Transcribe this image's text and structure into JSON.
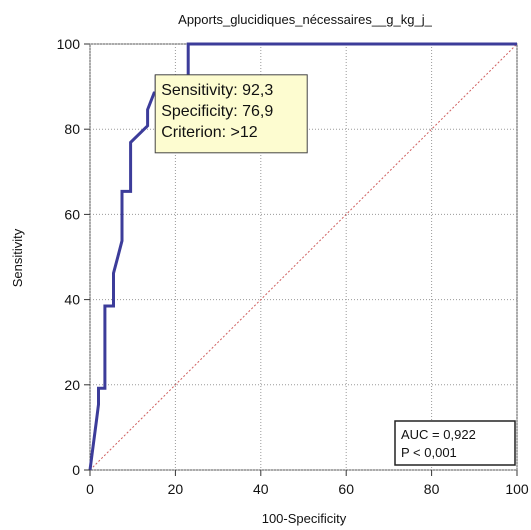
{
  "chart_data": {
    "type": "line",
    "title": "Apports_glucidiques_nécessaires__g_kg_j_",
    "xlabel": "100-Specificity",
    "ylabel": "Sensitivity",
    "xlim": [
      0,
      100
    ],
    "ylim": [
      0,
      100
    ],
    "xticks": [
      0,
      20,
      40,
      60,
      80,
      100
    ],
    "yticks": [
      0,
      20,
      40,
      60,
      80,
      100
    ],
    "grid": true,
    "series": [
      {
        "color": "#3c3c9a",
        "x": [
          0,
          0.5,
          1.5,
          2,
          2,
          3.5,
          3.5,
          5.5,
          5.5,
          6.5,
          7.5,
          7.5,
          9.5,
          9.5,
          13.5,
          13.5,
          15,
          15.5,
          15.5,
          23,
          23,
          100
        ],
        "y": [
          0,
          3.8,
          11.5,
          15.4,
          19.2,
          19.2,
          38.5,
          38.5,
          46.2,
          50,
          53.8,
          65.4,
          65.4,
          76.9,
          80.8,
          84.6,
          88.5,
          88.5,
          92.3,
          92.3,
          100,
          100
        ]
      },
      {
        "color": "#d06060",
        "dashed": true,
        "x": [
          0,
          100
        ],
        "y": [
          0,
          100
        ]
      }
    ],
    "annotation": {
      "point": [
        23,
        92.3
      ],
      "lines": [
        "Sensitivity: 92,3",
        "Specificity: 76,9",
        "Criterion: >12"
      ]
    },
    "stats_box": {
      "lines": [
        "AUC = 0,922",
        "P < 0,001"
      ],
      "placement": "bottom-right"
    }
  }
}
